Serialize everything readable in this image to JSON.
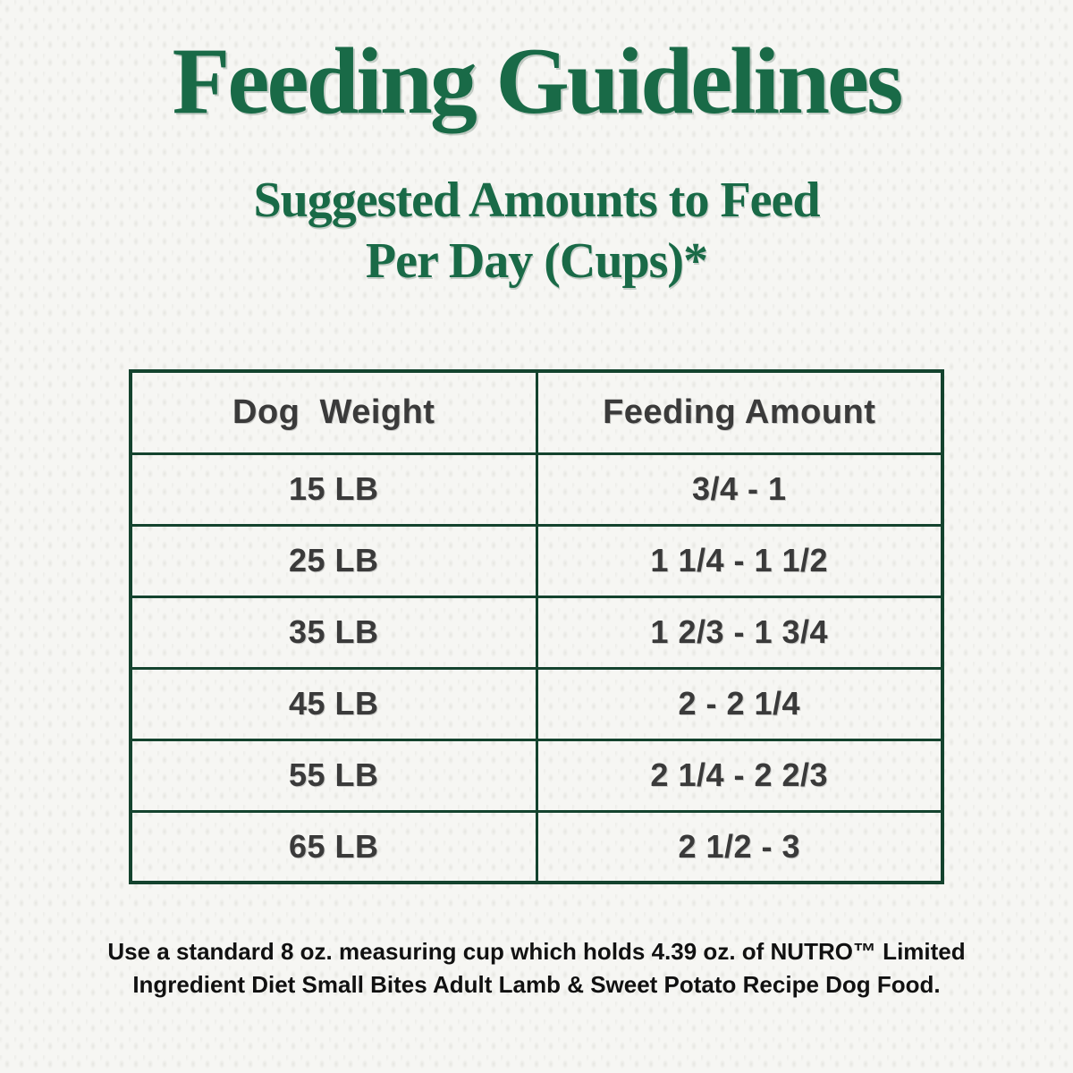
{
  "header": {
    "title": "Feeding Guidelines",
    "subtitle_line1": "Suggested Amounts to Feed",
    "subtitle_line2": "Per Day (Cups)*"
  },
  "table": {
    "columns": [
      "Dog  Weight",
      "Feeding Amount"
    ],
    "rows": [
      {
        "weight": "15 LB",
        "amount": "3/4 - 1"
      },
      {
        "weight": "25 LB",
        "amount": "1 1/4 - 1 1/2"
      },
      {
        "weight": "35 LB",
        "amount": "1 2/3 - 1 3/4"
      },
      {
        "weight": "45 LB",
        "amount": "2 - 2 1/4"
      },
      {
        "weight": "55 LB",
        "amount": "2 1/4 - 2 2/3"
      },
      {
        "weight": "65 LB",
        "amount": "2 1/2 - 3"
      }
    ]
  },
  "footnote": {
    "line1": "Use a standard 8 oz. measuring cup which holds 4.39 oz. of NUTRO™ Limited",
    "line2": "Ingredient Diet Small Bites Adult Lamb & Sweet Potato Recipe Dog Food."
  },
  "colors": {
    "title_green": "#196a47",
    "table_border_green": "#14432e",
    "table_text": "#3a3a3a",
    "footnote_text": "#111111",
    "background": "#f6f6f3"
  }
}
